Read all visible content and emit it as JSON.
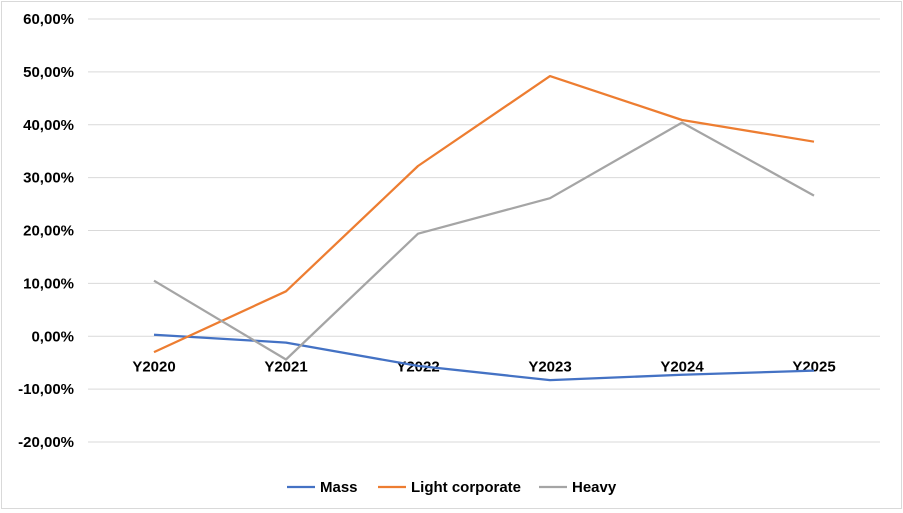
{
  "chart_data": {
    "type": "line",
    "title": "",
    "xlabel": "",
    "ylabel": "",
    "categories": [
      "Y2020",
      "Y2021",
      "Y2022",
      "Y2023",
      "Y2024",
      "Y2025"
    ],
    "y_ticks": [
      "60,00%",
      "50,00%",
      "40,00%",
      "30,00%",
      "20,00%",
      "10,00%",
      "0,00%",
      "-10,00%",
      "-20,00%"
    ],
    "ylim": [
      -20,
      60
    ],
    "grid": true,
    "legend_position": "bottom",
    "series": [
      {
        "name": "Mass",
        "color": "#4472c4",
        "values": [
          0.3,
          -1.2,
          -5.6,
          -8.3,
          -7.3,
          -6.5
        ]
      },
      {
        "name": "Light corporate",
        "color": "#ed7d31",
        "values": [
          -3.0,
          8.5,
          32.2,
          49.2,
          40.9,
          36.8
        ]
      },
      {
        "name": "Heavy",
        "color": "#a5a5a5",
        "values": [
          10.5,
          -4.4,
          19.4,
          26.1,
          40.4,
          26.6
        ]
      }
    ]
  }
}
